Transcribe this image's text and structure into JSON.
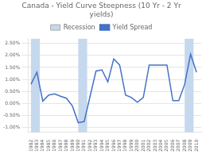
{
  "chart_data": {
    "type": "line",
    "title": "Canada - Yield Curve Steepness (10 Yr - 2 Yr\nyields)",
    "x": [
      1982,
      1983,
      1984,
      1985,
      1986,
      1987,
      1988,
      1989,
      1990,
      1991,
      1992,
      1993,
      1994,
      1995,
      1996,
      1997,
      1998,
      1999,
      2000,
      2001,
      2002,
      2003,
      2004,
      2005,
      2006,
      2007,
      2008,
      2009,
      2010
    ],
    "series": [
      {
        "name": "Yield Spread",
        "color": "#4472c4",
        "values": [
          0.8,
          1.3,
          0.1,
          0.35,
          0.4,
          0.3,
          0.22,
          -0.1,
          -0.8,
          -0.75,
          0.3,
          1.35,
          1.4,
          0.9,
          1.85,
          1.6,
          0.35,
          0.25,
          0.05,
          0.25,
          1.6,
          1.6,
          1.6,
          1.6,
          0.12,
          0.12,
          0.8,
          2.05,
          1.3
        ]
      }
    ],
    "recessions": {
      "name": "Recession",
      "color": "#c5d8ed",
      "periods": [
        [
          1982,
          1983.5
        ],
        [
          1990,
          1991.5
        ],
        [
          2008,
          2009.5
        ]
      ]
    },
    "xlim": [
      1981.5,
      2010.8
    ],
    "xticks": [
      {
        "value": 1982,
        "label": "1982"
      },
      {
        "value": 1983,
        "label": "1983"
      },
      {
        "value": 1984,
        "label": "1984"
      },
      {
        "value": 1985,
        "label": "1985"
      },
      {
        "value": 1986,
        "label": "1986"
      },
      {
        "value": 1987,
        "label": "1987"
      },
      {
        "value": 1988,
        "label": "1988"
      },
      {
        "value": 1989,
        "label": "1989"
      },
      {
        "value": 1990,
        "label": "1990"
      },
      {
        "value": 1991,
        "label": "1991"
      },
      {
        "value": 1992,
        "label": "1992"
      },
      {
        "value": 1993,
        "label": "1993"
      },
      {
        "value": 1994,
        "label": "1994"
      },
      {
        "value": 1995,
        "label": "1995"
      },
      {
        "value": 1996,
        "label": "1996"
      },
      {
        "value": 1997,
        "label": "1997"
      },
      {
        "value": 1998,
        "label": "1998"
      },
      {
        "value": 1999,
        "label": "1999"
      },
      {
        "value": 2000,
        "label": "2000"
      },
      {
        "value": 2001,
        "label": "2001"
      },
      {
        "value": 2002,
        "label": "2002"
      },
      {
        "value": 2003,
        "label": "2003"
      },
      {
        "value": 2004,
        "label": "2004"
      },
      {
        "value": 2005,
        "label": "2005"
      },
      {
        "value": 2006,
        "label": "2006"
      },
      {
        "value": 2007,
        "label": "2007"
      },
      {
        "value": 2008,
        "label": "2008"
      },
      {
        "value": 2009,
        "label": "2009"
      },
      {
        "value": 2010,
        "label": "2010"
      }
    ],
    "ylim": [
      -1.2,
      2.7
    ],
    "yticks": [
      {
        "value": -1.0,
        "label": "-1.00%"
      },
      {
        "value": -0.5,
        "label": "-0.50%"
      },
      {
        "value": 0.0,
        "label": "0.00%"
      },
      {
        "value": 0.5,
        "label": "0.50%"
      },
      {
        "value": 1.0,
        "label": "1.00%"
      },
      {
        "value": 1.5,
        "label": "1.50%"
      },
      {
        "value": 2.0,
        "label": "2.00%"
      },
      {
        "value": 2.5,
        "label": "2.50%"
      }
    ],
    "grid": "y",
    "legend": "top"
  }
}
